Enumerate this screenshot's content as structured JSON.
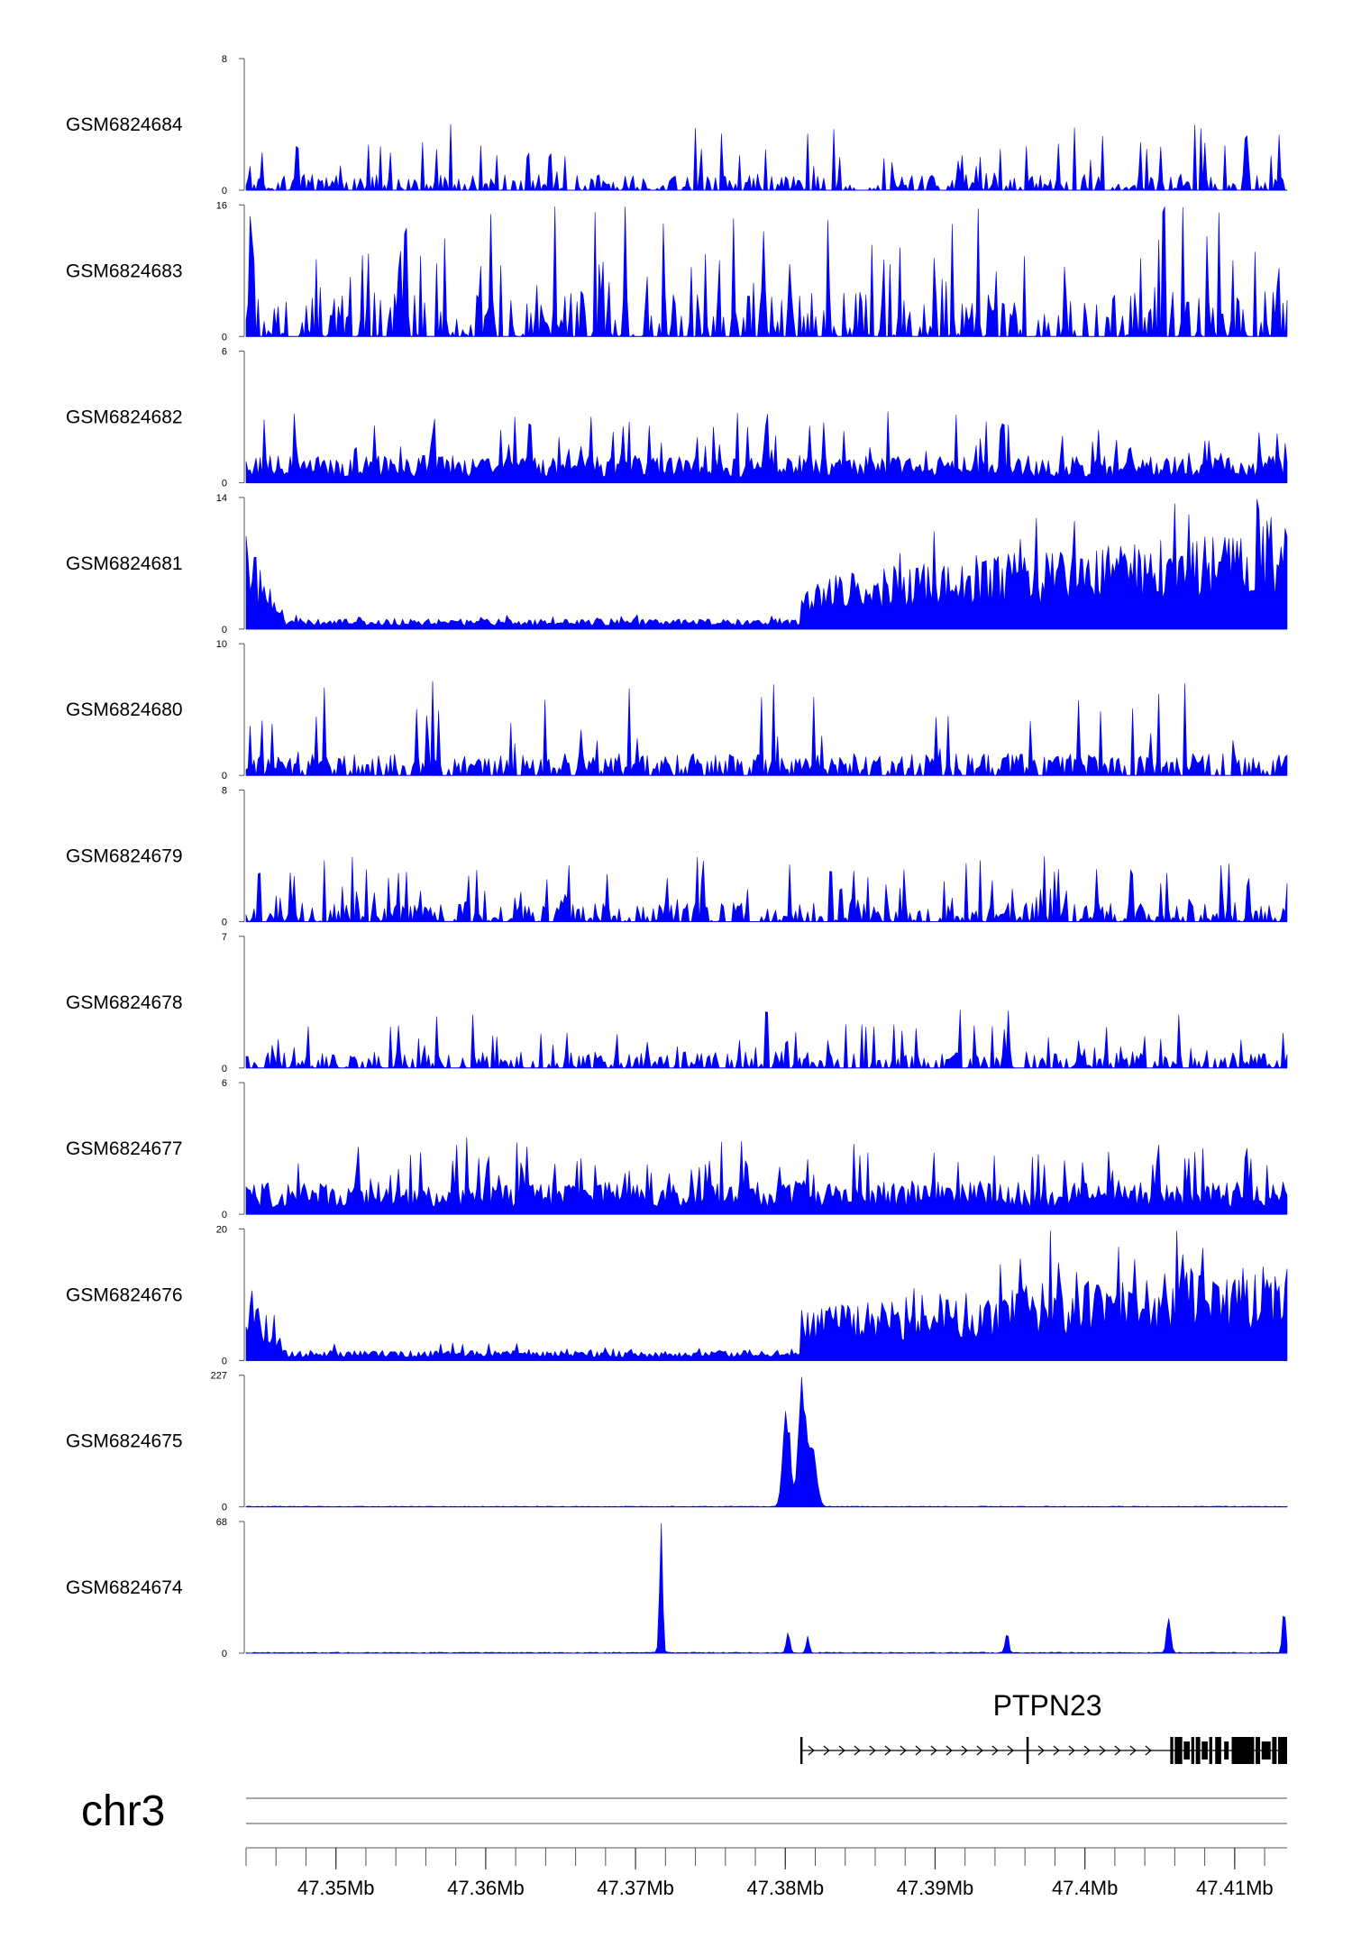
{
  "chart_data": {
    "type": "area",
    "title": "",
    "chromosome": "chr3",
    "x_range_bp": [
      47344000,
      47413500
    ],
    "colors": {
      "signal": "#0000ff",
      "gene": "#000000",
      "axis": "#555555"
    },
    "gene": {
      "name": "PTPN23",
      "strand": "+",
      "start": 47381000,
      "end": 47413500,
      "exons": [
        [
          47381000,
          47381150
        ],
        [
          47396100,
          47396250
        ],
        [
          47405700,
          47405900
        ],
        [
          47406000,
          47406500
        ],
        [
          47406600,
          47407000
        ],
        [
          47407100,
          47407300
        ],
        [
          47407400,
          47407700
        ],
        [
          47407800,
          47408200
        ],
        [
          47408300,
          47408500
        ],
        [
          47408700,
          47409100
        ],
        [
          47409300,
          47409600
        ],
        [
          47409800,
          47411300
        ],
        [
          47411400,
          47411700
        ],
        [
          47411800,
          47412400
        ],
        [
          47412500,
          47412800
        ],
        [
          47412900,
          47413500
        ]
      ]
    },
    "axis": {
      "ticks": [
        {
          "pos": 47350000,
          "label": "47.35Mb"
        },
        {
          "pos": 47360000,
          "label": "47.36Mb"
        },
        {
          "pos": 47370000,
          "label": "47.37Mb"
        },
        {
          "pos": 47380000,
          "label": "47.38Mb"
        },
        {
          "pos": 47390000,
          "label": "47.39Mb"
        },
        {
          "pos": 47400000,
          "label": "47.4Mb"
        },
        {
          "pos": 47410000,
          "label": "47.41Mb"
        }
      ],
      "minor_step_bp": 2000
    },
    "tracks": [
      {
        "name": "GSM6824684",
        "ymax": 8,
        "ymax_label": "8",
        "ymin_label": "0",
        "profile": "sparse",
        "base": 1.0,
        "spike": 3.5,
        "seed": 11
      },
      {
        "name": "GSM6824683",
        "ymax": 16,
        "ymax_label": "16",
        "ymin_label": "0",
        "profile": "sparse",
        "base": 2.8,
        "spike": 6.0,
        "seed": 23
      },
      {
        "name": "GSM6824682",
        "ymax": 6,
        "ymax_label": "6",
        "ymin_label": "0",
        "profile": "dense",
        "base": 1.1,
        "spike": 2.2,
        "seed": 37
      },
      {
        "name": "GSM6824681",
        "ymax": 14,
        "ymax_label": "14",
        "ymin_label": "0",
        "profile": "gene_high",
        "base": 0.5,
        "spike": 1.4,
        "seed": 41
      },
      {
        "name": "GSM6824680",
        "ymax": 10,
        "ymax_label": "10",
        "ymin_label": "0",
        "profile": "medium",
        "base": 1.0,
        "spike": 3.0,
        "seed": 53
      },
      {
        "name": "GSM6824679",
        "ymax": 8,
        "ymax_label": "8",
        "ymin_label": "0",
        "profile": "sparse",
        "base": 1.2,
        "spike": 3.0,
        "seed": 67
      },
      {
        "name": "GSM6824678",
        "ymax": 7,
        "ymax_label": "7",
        "ymin_label": "0",
        "profile": "sparse",
        "base": 1.0,
        "spike": 2.8,
        "seed": 71
      },
      {
        "name": "GSM6824677",
        "ymax": 6,
        "ymax_label": "6",
        "ymin_label": "0",
        "profile": "dense",
        "base": 1.3,
        "spike": 2.2,
        "seed": 83
      },
      {
        "name": "GSM6824676",
        "ymax": 20,
        "ymax_label": "20",
        "ymin_label": "0",
        "profile": "gene_high",
        "base": 0.8,
        "spike": 1.8,
        "seed": 97
      },
      {
        "name": "GSM6824675",
        "ymax": 227,
        "ymax_label": "227",
        "ymin_label": "0",
        "profile": "peaks",
        "base": 0.6,
        "spike": 0.6,
        "seed": 101,
        "peaks": [
          {
            "pos": 47380100,
            "height": 155,
            "width": 350
          },
          {
            "pos": 47381100,
            "height": 215,
            "width": 320
          },
          {
            "pos": 47381800,
            "height": 105,
            "width": 380
          }
        ]
      },
      {
        "name": "GSM6824674",
        "ymax": 68,
        "ymax_label": "68",
        "ymin_label": "0",
        "profile": "peaks",
        "base": 0.8,
        "spike": 0.8,
        "seed": 113,
        "peaks": [
          {
            "pos": 47371700,
            "height": 66,
            "width": 140
          },
          {
            "pos": 47380200,
            "height": 11,
            "width": 160
          },
          {
            "pos": 47381500,
            "height": 8,
            "width": 140
          },
          {
            "pos": 47394800,
            "height": 10,
            "width": 160
          },
          {
            "pos": 47405600,
            "height": 21,
            "width": 180
          },
          {
            "pos": 47413300,
            "height": 23,
            "width": 160
          }
        ]
      }
    ]
  }
}
